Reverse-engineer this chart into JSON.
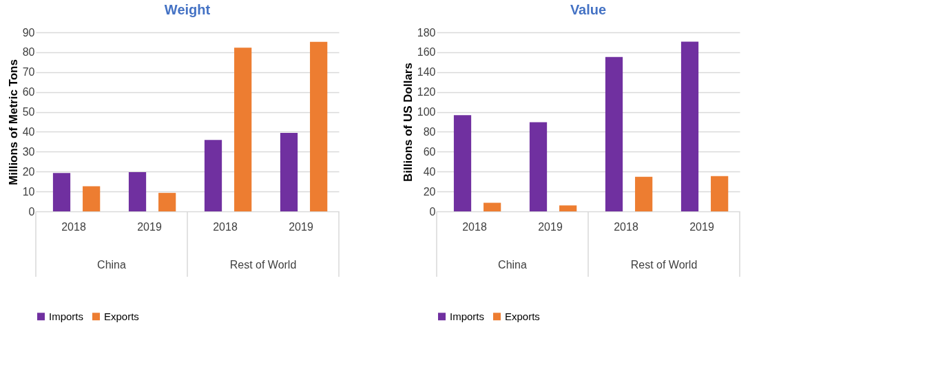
{
  "chart_data": [
    {
      "type": "bar",
      "title": "Weight",
      "ylabel": "Millions of Metric Tons",
      "categories": [
        "2018",
        "2019",
        "2018",
        "2019"
      ],
      "annotations": [
        "China",
        "Rest of World"
      ],
      "series": [
        {
          "name": "Imports",
          "color": "#7030a0",
          "values": [
            19.3,
            19.7,
            35.9,
            39.5
          ]
        },
        {
          "name": "Exports",
          "color": "#ed7d31",
          "values": [
            12.6,
            9.3,
            82.3,
            85.2
          ]
        }
      ],
      "ylim": [
        0,
        90
      ],
      "yticks": [
        0,
        10,
        20,
        30,
        40,
        50,
        60,
        70,
        80,
        90
      ],
      "grid": "y",
      "legend": "bottom"
    },
    {
      "type": "bar",
      "title": "Value",
      "ylabel": "Billions of US Dollars",
      "categories": [
        "2018",
        "2019",
        "2018",
        "2019"
      ],
      "annotations": [
        "China",
        "Rest of World"
      ],
      "series": [
        {
          "name": "Imports",
          "color": "#7030a0",
          "values": [
            96.8,
            89.7,
            155.3,
            170.6
          ]
        },
        {
          "name": "Exports",
          "color": "#ed7d31",
          "values": [
            8.7,
            6.0,
            34.8,
            35.4
          ]
        }
      ],
      "ylim": [
        0,
        180
      ],
      "yticks": [
        0,
        20,
        40,
        60,
        80,
        100,
        120,
        140,
        160,
        180
      ],
      "grid": "y",
      "legend": "bottom"
    }
  ]
}
